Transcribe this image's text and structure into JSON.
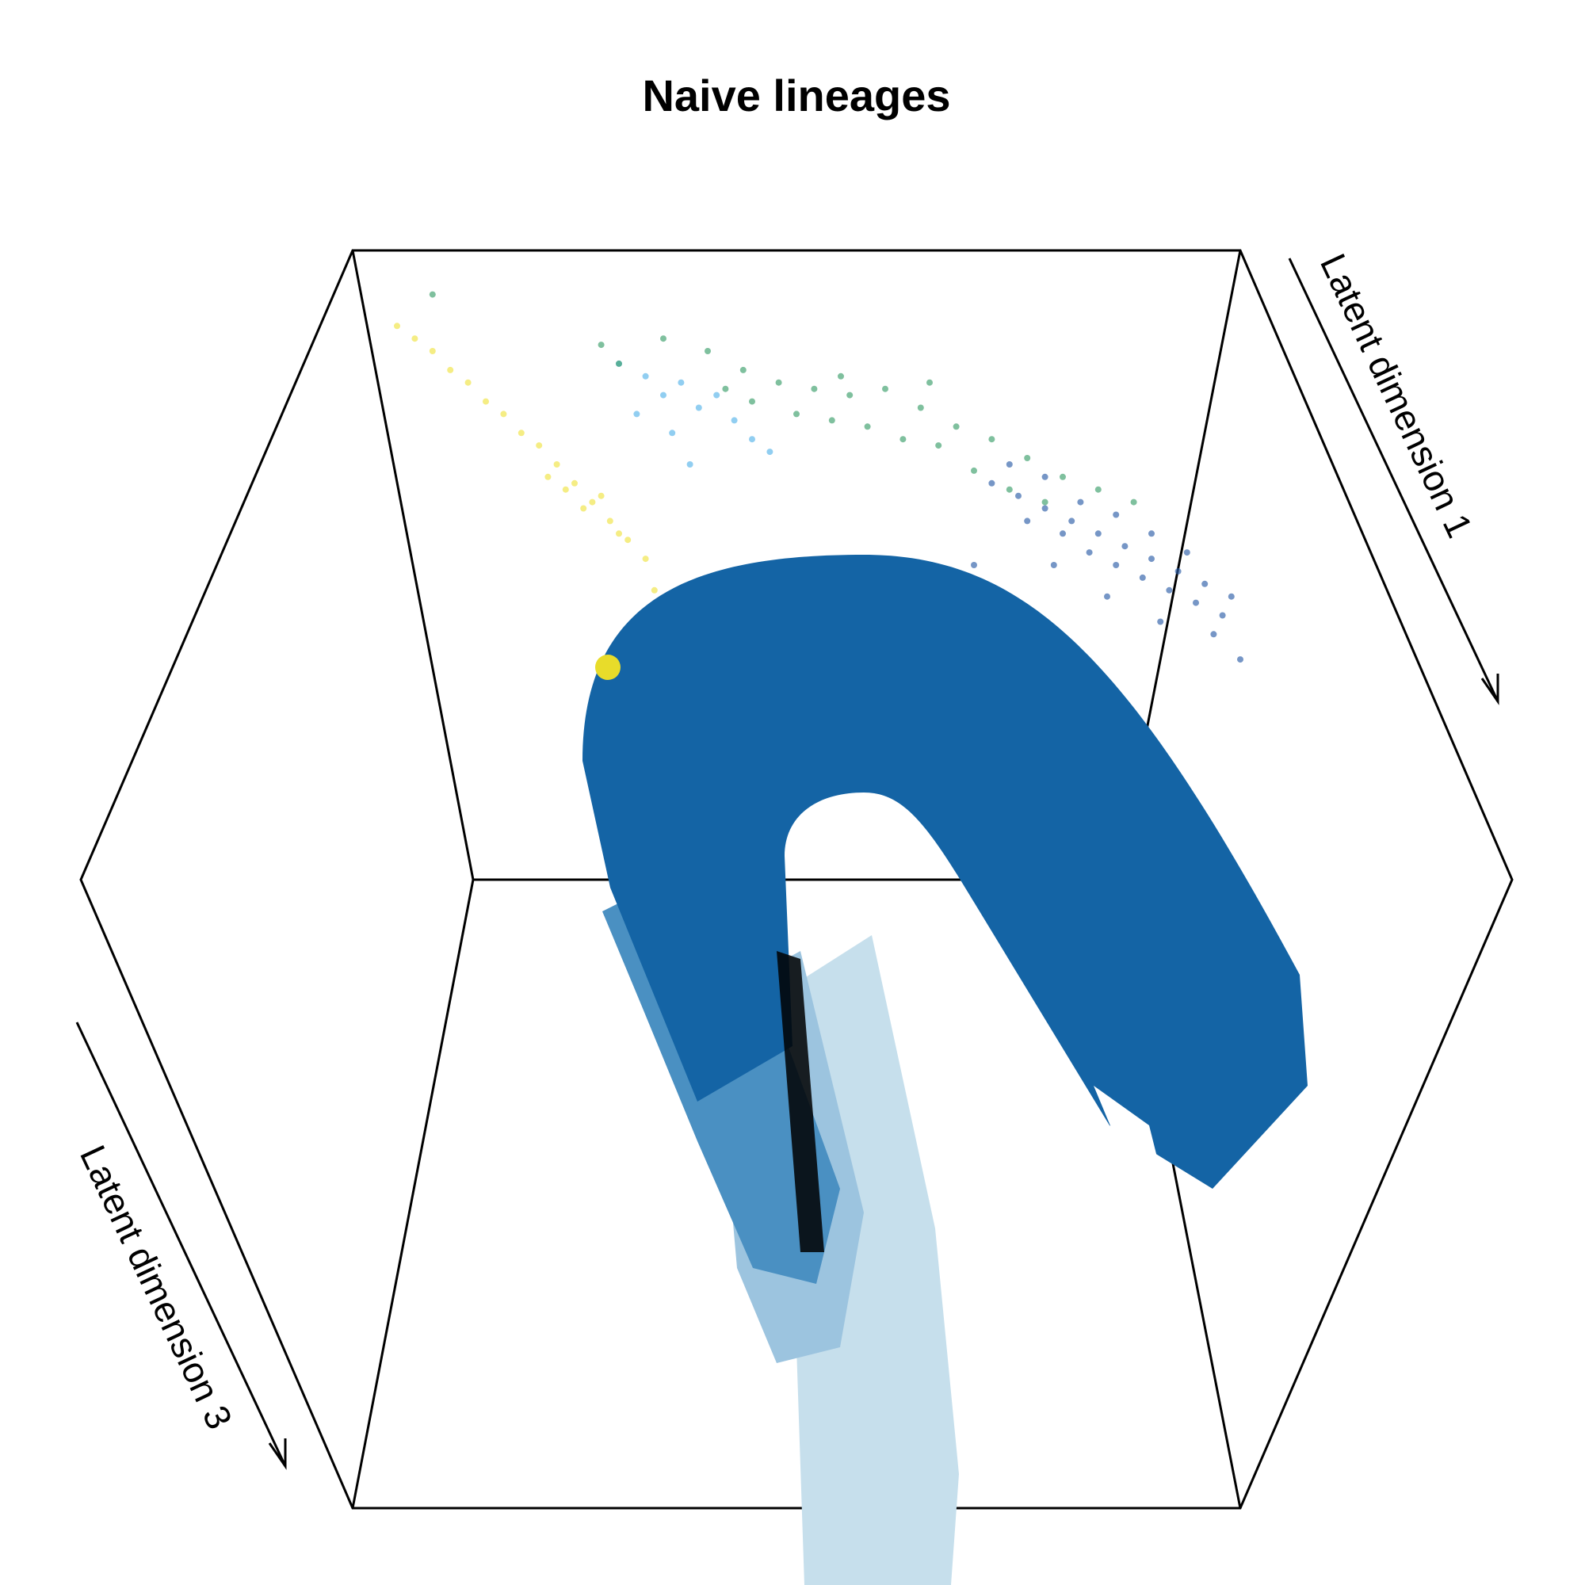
{
  "chart_data": {
    "type": "scatter",
    "title": "Naive lineages",
    "axes": {
      "x_label": "Latent dimension 1",
      "z_label": "Latent dimension 3"
    },
    "grid": false,
    "legend": "none",
    "tube_colors": {
      "dark": "#1464a5",
      "mid": "#4a90c2",
      "light": "#9cc4df",
      "lightest": "#c6dfec"
    },
    "point_colors": {
      "yellow": "#f0e442",
      "sky_blue": "#56b4e9",
      "green": "#3a9e6a",
      "blue": "#2c5ea8"
    },
    "series": [
      {
        "color": "#f0e442",
        "points": [
          [
            0.05,
            0.88
          ],
          [
            0.07,
            0.86
          ],
          [
            0.09,
            0.84
          ],
          [
            0.11,
            0.81
          ],
          [
            0.13,
            0.79
          ],
          [
            0.15,
            0.76
          ],
          [
            0.17,
            0.74
          ],
          [
            0.19,
            0.71
          ],
          [
            0.21,
            0.69
          ],
          [
            0.23,
            0.66
          ],
          [
            0.25,
            0.63
          ],
          [
            0.27,
            0.6
          ],
          [
            0.29,
            0.57
          ],
          [
            0.31,
            0.54
          ],
          [
            0.33,
            0.51
          ],
          [
            0.22,
            0.64
          ],
          [
            0.24,
            0.62
          ],
          [
            0.26,
            0.59
          ],
          [
            0.28,
            0.61
          ],
          [
            0.3,
            0.55
          ],
          [
            0.34,
            0.46
          ],
          [
            0.38,
            0.39
          ],
          [
            0.42,
            0.35
          ],
          [
            0.46,
            0.34
          ],
          [
            0.5,
            0.36
          ],
          [
            0.55,
            0.31
          ],
          [
            0.6,
            0.28
          ],
          [
            0.47,
            0.18
          ],
          [
            0.42,
            0.27
          ]
        ]
      },
      {
        "color": "#56b4e9",
        "points": [
          [
            0.3,
            0.82
          ],
          [
            0.33,
            0.8
          ],
          [
            0.35,
            0.77
          ],
          [
            0.37,
            0.79
          ],
          [
            0.39,
            0.75
          ],
          [
            0.41,
            0.77
          ],
          [
            0.43,
            0.73
          ],
          [
            0.36,
            0.71
          ],
          [
            0.32,
            0.74
          ],
          [
            0.45,
            0.7
          ],
          [
            0.47,
            0.68
          ],
          [
            0.38,
            0.66
          ]
        ]
      },
      {
        "color": "#3a9e6a",
        "points": [
          [
            0.09,
            0.93
          ],
          [
            0.28,
            0.85
          ],
          [
            0.3,
            0.82
          ],
          [
            0.35,
            0.86
          ],
          [
            0.4,
            0.84
          ],
          [
            0.44,
            0.81
          ],
          [
            0.48,
            0.79
          ],
          [
            0.52,
            0.78
          ],
          [
            0.56,
            0.77
          ],
          [
            0.6,
            0.78
          ],
          [
            0.64,
            0.75
          ],
          [
            0.68,
            0.72
          ],
          [
            0.72,
            0.7
          ],
          [
            0.76,
            0.67
          ],
          [
            0.8,
            0.64
          ],
          [
            0.84,
            0.62
          ],
          [
            0.88,
            0.6
          ],
          [
            0.5,
            0.74
          ],
          [
            0.54,
            0.73
          ],
          [
            0.58,
            0.72
          ],
          [
            0.62,
            0.7
          ],
          [
            0.66,
            0.69
          ],
          [
            0.7,
            0.65
          ],
          [
            0.74,
            0.62
          ],
          [
            0.78,
            0.6
          ],
          [
            0.45,
            0.76
          ],
          [
            0.42,
            0.78
          ],
          [
            0.65,
            0.79
          ],
          [
            0.55,
            0.8
          ]
        ]
      },
      {
        "color": "#2c5ea8",
        "points": [
          [
            0.72,
            0.63
          ],
          [
            0.75,
            0.61
          ],
          [
            0.78,
            0.59
          ],
          [
            0.81,
            0.57
          ],
          [
            0.84,
            0.55
          ],
          [
            0.87,
            0.53
          ],
          [
            0.9,
            0.51
          ],
          [
            0.93,
            0.49
          ],
          [
            0.96,
            0.47
          ],
          [
            0.99,
            0.45
          ],
          [
            0.76,
            0.57
          ],
          [
            0.8,
            0.55
          ],
          [
            0.83,
            0.52
          ],
          [
            0.86,
            0.5
          ],
          [
            0.89,
            0.48
          ],
          [
            0.92,
            0.46
          ],
          [
            0.95,
            0.44
          ],
          [
            0.98,
            0.42
          ],
          [
            0.74,
            0.66
          ],
          [
            0.78,
            0.64
          ],
          [
            0.82,
            0.6
          ],
          [
            0.86,
            0.58
          ],
          [
            0.9,
            0.55
          ],
          [
            0.94,
            0.52
          ],
          [
            0.7,
            0.5
          ],
          [
            0.66,
            0.47
          ],
          [
            0.62,
            0.44
          ],
          [
            0.58,
            0.42
          ],
          [
            0.73,
            0.45
          ],
          [
            0.68,
            0.41
          ],
          [
            0.64,
            0.38
          ],
          [
            0.79,
            0.5
          ],
          [
            0.85,
            0.45
          ],
          [
            0.91,
            0.41
          ],
          [
            0.97,
            0.39
          ],
          [
            1.0,
            0.35
          ]
        ]
      }
    ]
  }
}
